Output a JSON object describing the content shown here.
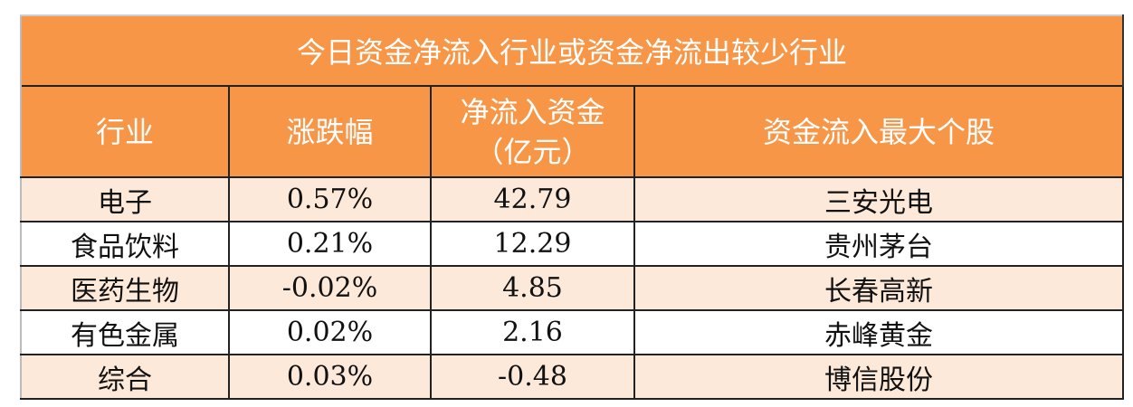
{
  "title": "今日资金净流入行业或资金净流出较少行业",
  "columns": [
    "行业",
    "涨跌幅",
    "净流入资金\n（亿元）",
    "资金流入最大个股"
  ],
  "column_lines": {
    "net_1": "净流入资金",
    "net_2": "（亿元）"
  },
  "rows": [
    [
      "电子",
      "0.57%",
      "42.79",
      "三安光电"
    ],
    [
      "食品饮料",
      "0.21%",
      "12.29",
      "贵州茅台"
    ],
    [
      "医药生物",
      "-0.02%",
      "4.85",
      "长春高新"
    ],
    [
      "有色金属",
      "0.02%",
      "2.16",
      "赤峰黄金"
    ],
    [
      "综合",
      "0.03%",
      "-0.48",
      "博信股份"
    ]
  ],
  "colors": {
    "header_bg": "#f79646",
    "header_text": "#ffffff",
    "stripe_bg": "#fde9d9"
  }
}
